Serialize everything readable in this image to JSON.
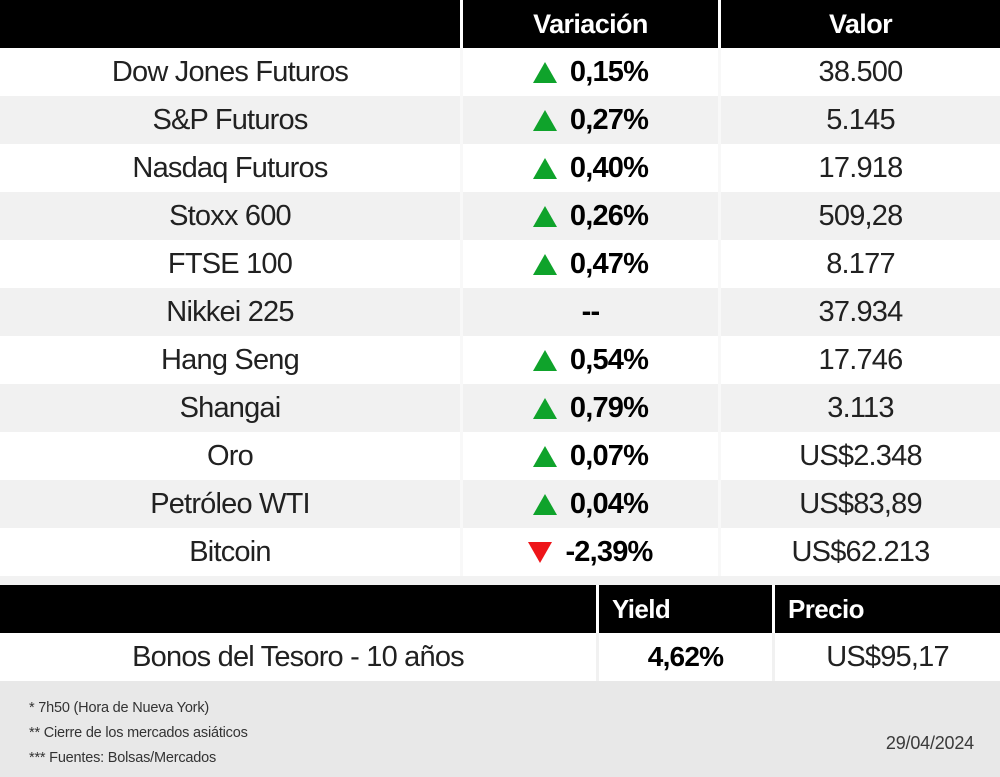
{
  "colors": {
    "up": "#0FA32B",
    "down": "#EE1519"
  },
  "market_table": {
    "headers": {
      "variation": "Variación",
      "value": "Valor"
    },
    "rows": [
      {
        "name": "Dow Jones Futuros",
        "direction": "up",
        "variation": "0,15%",
        "value": "38.500"
      },
      {
        "name": "S&P Futuros",
        "direction": "up",
        "variation": "0,27%",
        "value": "5.145"
      },
      {
        "name": "Nasdaq Futuros",
        "direction": "up",
        "variation": "0,40%",
        "value": "17.918"
      },
      {
        "name": "Stoxx 600",
        "direction": "up",
        "variation": "0,26%",
        "value": "509,28"
      },
      {
        "name": "FTSE 100",
        "direction": "up",
        "variation": "0,47%",
        "value": "8.177"
      },
      {
        "name": "Nikkei 225",
        "direction": "none",
        "variation": "--",
        "value": "37.934"
      },
      {
        "name": "Hang Seng",
        "direction": "up",
        "variation": "0,54%",
        "value": "17.746"
      },
      {
        "name": "Shangai",
        "direction": "up",
        "variation": "0,79%",
        "value": "3.113"
      },
      {
        "name": "Oro",
        "direction": "up",
        "variation": "0,07%",
        "value": "US$2.348"
      },
      {
        "name": "Petróleo WTI",
        "direction": "up",
        "variation": "0,04%",
        "value": "US$83,89"
      },
      {
        "name": "Bitcoin",
        "direction": "down",
        "variation": "-2,39%",
        "value": "US$62.213"
      }
    ]
  },
  "bonds_table": {
    "headers": {
      "yield": "Yield",
      "price": "Precio"
    },
    "row": {
      "name": "Bonos del Tesoro - 10 años",
      "yield": "4,62%",
      "price": "US$95,17"
    }
  },
  "footer": {
    "notes": [
      "* 7h50 (Hora de Nueva York)",
      "** Cierre de los mercados asiáticos",
      "*** Fuentes: Bolsas/Mercados"
    ],
    "date": "29/04/2024"
  },
  "chart_data": {
    "type": "table",
    "tables": [
      {
        "columns": [
          "",
          "Variación",
          "Valor"
        ],
        "rows": [
          [
            "Dow Jones Futuros",
            "+0,15%",
            "38.500"
          ],
          [
            "S&P Futuros",
            "+0,27%",
            "5.145"
          ],
          [
            "Nasdaq Futuros",
            "+0,40%",
            "17.918"
          ],
          [
            "Stoxx 600",
            "+0,26%",
            "509,28"
          ],
          [
            "FTSE 100",
            "+0,47%",
            "8.177"
          ],
          [
            "Nikkei 225",
            "--",
            "37.934"
          ],
          [
            "Hang Seng",
            "+0,54%",
            "17.746"
          ],
          [
            "Shangai",
            "+0,79%",
            "3.113"
          ],
          [
            "Oro",
            "+0,07%",
            "US$2.348"
          ],
          [
            "Petróleo WTI",
            "+0,04%",
            "US$83,89"
          ],
          [
            "Bitcoin",
            "-2,39%",
            "US$62.213"
          ]
        ]
      },
      {
        "columns": [
          "",
          "Yield",
          "Precio"
        ],
        "rows": [
          [
            "Bonos del Tesoro - 10 años",
            "4,62%",
            "US$95,17"
          ]
        ]
      }
    ],
    "notes": [
      "* 7h50 (Hora de Nueva York)",
      "** Cierre de los mercados asiáticos",
      "*** Fuentes: Bolsas/Mercados"
    ],
    "date": "29/04/2024"
  }
}
